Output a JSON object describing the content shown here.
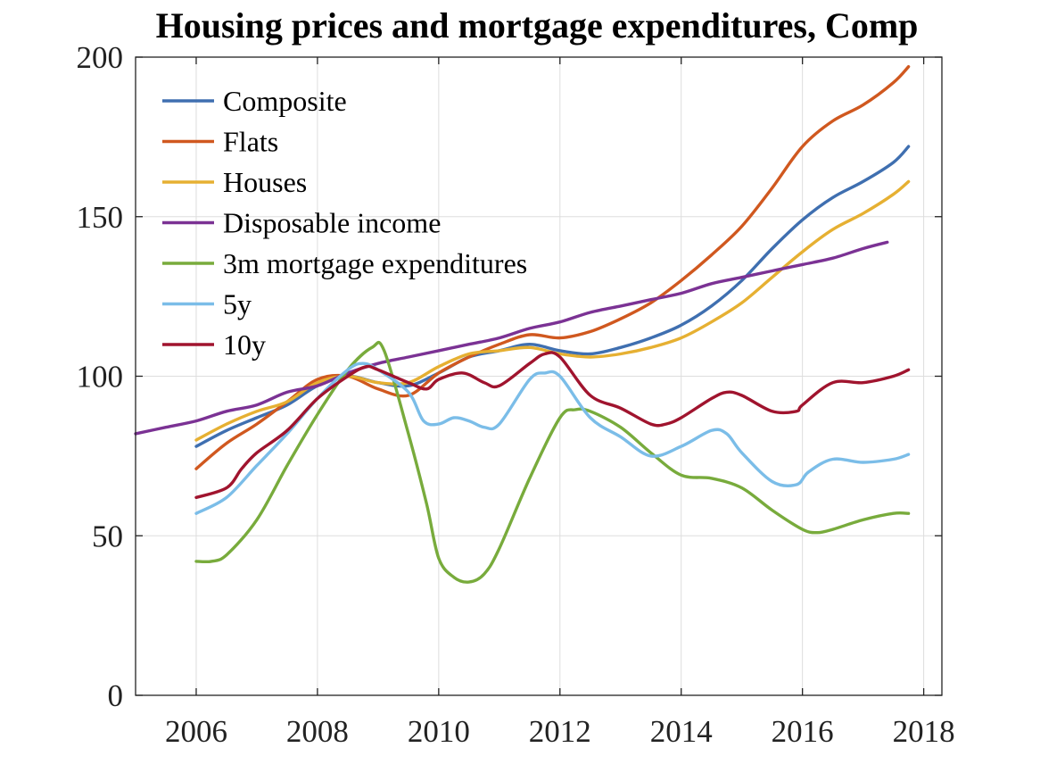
{
  "chart_data": {
    "type": "line",
    "title": "Housing prices and mortgage expenditures, Comp",
    "xlabel": "",
    "ylabel": "",
    "xlim": [
      2005,
      2018.3
    ],
    "ylim": [
      0,
      200
    ],
    "xticks": [
      2006,
      2008,
      2010,
      2012,
      2014,
      2016,
      2018
    ],
    "xtick_labels": [
      "2006",
      "2008",
      "2010",
      "2012",
      "2014",
      "2016",
      "2018"
    ],
    "yticks": [
      0,
      50,
      100,
      150,
      200
    ],
    "ytick_labels": [
      "0",
      "50",
      "100",
      "150",
      "200"
    ],
    "grid": true,
    "legend_position": "top-left",
    "series": [
      {
        "name": "Composite",
        "color": "#3f6fb0",
        "x": [
          2006.0,
          2006.5,
          2007.0,
          2007.5,
          2008.0,
          2008.5,
          2009.0,
          2009.5,
          2010.0,
          2010.5,
          2011.0,
          2011.5,
          2012.0,
          2012.5,
          2013.0,
          2013.5,
          2014.0,
          2014.5,
          2015.0,
          2015.5,
          2016.0,
          2016.5,
          2017.0,
          2017.5,
          2017.75
        ],
        "y": [
          78,
          83,
          87,
          91,
          97,
          100,
          98,
          97,
          101,
          106,
          108,
          110,
          108,
          107,
          109,
          112,
          116,
          122,
          130,
          140,
          149,
          156,
          161,
          167,
          172
        ]
      },
      {
        "name": "Flats",
        "color": "#d0581f",
        "x": [
          2006.0,
          2006.5,
          2007.0,
          2007.5,
          2008.0,
          2008.5,
          2009.0,
          2009.5,
          2010.0,
          2010.5,
          2011.0,
          2011.5,
          2012.0,
          2012.5,
          2013.0,
          2013.5,
          2014.0,
          2014.5,
          2015.0,
          2015.5,
          2016.0,
          2016.5,
          2017.0,
          2017.5,
          2017.75
        ],
        "y": [
          71,
          79,
          85,
          92,
          99,
          100,
          96,
          94,
          101,
          106,
          110,
          113,
          112,
          114,
          118,
          123,
          130,
          138,
          147,
          159,
          172,
          180,
          185,
          192,
          197
        ]
      },
      {
        "name": "Houses",
        "color": "#e6b032",
        "x": [
          2006.0,
          2006.5,
          2007.0,
          2007.5,
          2008.0,
          2008.5,
          2009.0,
          2009.5,
          2010.0,
          2010.5,
          2011.0,
          2011.5,
          2012.0,
          2012.5,
          2013.0,
          2013.5,
          2014.0,
          2014.5,
          2015.0,
          2015.5,
          2016.0,
          2016.5,
          2017.0,
          2017.5,
          2017.75
        ],
        "y": [
          80,
          85,
          89,
          92,
          98,
          100,
          98,
          98,
          103,
          107,
          108,
          109,
          107,
          106,
          107,
          109,
          112,
          117,
          123,
          131,
          139,
          146,
          151,
          157,
          161
        ]
      },
      {
        "name": "Disposable income",
        "color": "#7b3294",
        "x": [
          2005.0,
          2005.5,
          2006.0,
          2006.5,
          2007.0,
          2007.5,
          2008.0,
          2008.5,
          2009.0,
          2009.5,
          2010.0,
          2010.5,
          2011.0,
          2011.5,
          2012.0,
          2012.5,
          2013.0,
          2013.5,
          2014.0,
          2014.5,
          2015.0,
          2015.5,
          2016.0,
          2016.5,
          2017.0,
          2017.4
        ],
        "y": [
          82,
          84,
          86,
          89,
          91,
          95,
          97,
          101,
          104,
          106,
          108,
          110,
          112,
          115,
          117,
          120,
          122,
          124,
          126,
          129,
          131,
          133,
          135,
          137,
          140,
          142
        ]
      },
      {
        "name": "3m mortgage expenditures",
        "color": "#78ab3c",
        "x": [
          2006.0,
          2006.25,
          2006.5,
          2007.0,
          2007.5,
          2008.0,
          2008.5,
          2008.9,
          2009.1,
          2009.5,
          2009.8,
          2010.0,
          2010.25,
          2010.5,
          2010.75,
          2011.0,
          2011.5,
          2012.0,
          2012.25,
          2012.5,
          2013.0,
          2013.5,
          2014.0,
          2014.5,
          2015.0,
          2015.5,
          2016.0,
          2016.25,
          2016.5,
          2017.0,
          2017.5,
          2017.75
        ],
        "y": [
          42,
          42,
          44,
          55,
          72,
          88,
          102,
          109,
          108,
          82,
          60,
          43,
          37,
          35.5,
          38,
          46,
          68,
          87,
          89.5,
          89,
          84,
          76,
          69,
          68,
          65,
          58,
          52,
          51,
          52,
          55,
          57,
          57
        ]
      },
      {
        "name": "5y",
        "color": "#7bbde8",
        "x": [
          2006.0,
          2006.5,
          2007.0,
          2007.5,
          2008.0,
          2008.5,
          2008.75,
          2009.0,
          2009.5,
          2009.75,
          2010.0,
          2010.25,
          2010.5,
          2010.75,
          2011.0,
          2011.5,
          2011.75,
          2012.0,
          2012.5,
          2013.0,
          2013.5,
          2014.0,
          2014.5,
          2014.75,
          2015.0,
          2015.5,
          2015.9,
          2016.1,
          2016.5,
          2017.0,
          2017.5,
          2017.75
        ],
        "y": [
          57,
          62,
          72,
          82,
          93,
          102,
          104,
          102,
          95,
          86,
          85,
          87,
          86,
          84,
          85,
          99,
          101,
          100,
          87,
          81,
          75,
          78,
          83,
          82,
          76,
          67,
          66,
          70,
          74,
          73,
          74,
          75.5
        ]
      },
      {
        "name": "10y",
        "color": "#a0142e",
        "x": [
          2006.0,
          2006.5,
          2006.75,
          2007.0,
          2007.5,
          2008.0,
          2008.5,
          2008.8,
          2009.0,
          2009.5,
          2009.8,
          2010.0,
          2010.4,
          2010.75,
          2011.0,
          2011.5,
          2011.75,
          2012.0,
          2012.5,
          2013.0,
          2013.5,
          2013.75,
          2014.0,
          2014.5,
          2014.75,
          2015.0,
          2015.5,
          2015.9,
          2016.0,
          2016.5,
          2017.0,
          2017.5,
          2017.75
        ],
        "y": [
          62,
          65,
          71,
          76,
          83,
          93,
          100,
          103,
          102,
          98,
          96,
          99,
          101,
          98,
          97,
          104,
          107,
          106,
          94,
          90,
          85,
          85,
          87,
          93,
          95,
          94,
          89,
          89,
          91,
          98,
          98,
          100,
          102
        ]
      }
    ]
  }
}
